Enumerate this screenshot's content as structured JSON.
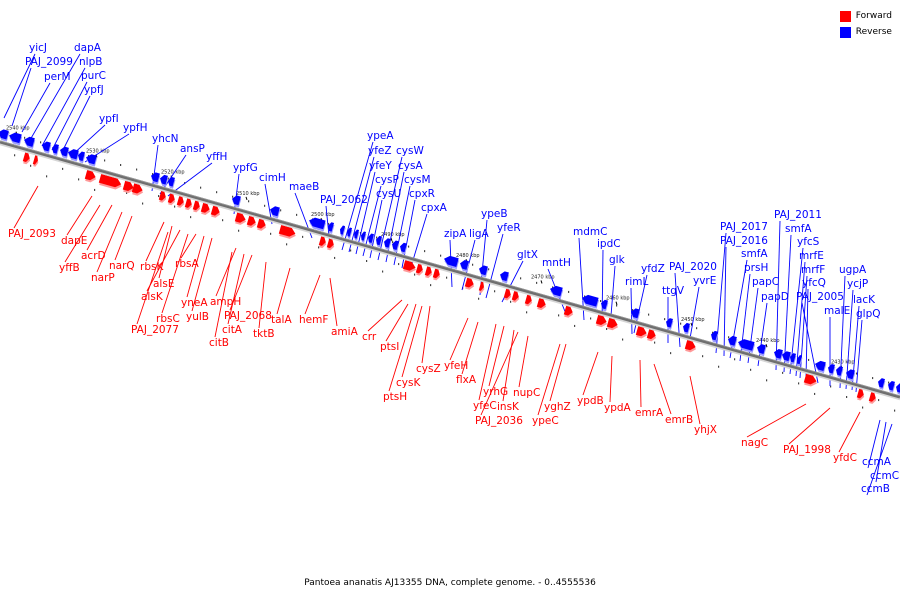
{
  "legend": {
    "forward": {
      "label": "Forward",
      "color": "#ff0000"
    },
    "reverse": {
      "label": "Reverse",
      "color": "#0000ff"
    }
  },
  "caption": "Pantoea ananatis AJ13355 DNA, complete genome. - 0..4555536",
  "kbp_ticks": [
    "2540 kbp",
    "2530 kbp",
    "2520 kbp",
    "2510 kbp",
    "2500 kbp",
    "2490 kbp",
    "2480 kbp",
    "2470 kbp",
    "2460 kbp",
    "2450 kbp",
    "2440 kbp",
    "2430 kbp"
  ],
  "reverse_genes": [
    "yicJ",
    "PAJ_2099",
    "dapA",
    "perM",
    "nlpB",
    "purC",
    "ypfJ",
    "ypfI",
    "ypfH",
    "yhcN",
    "ansP",
    "yffH",
    "ypfG",
    "cimH",
    "maeB",
    "PAJ_2062",
    "ypeA",
    "yfeZ",
    "yfeY",
    "cysP",
    "cysU",
    "cysW",
    "cysA",
    "cysM",
    "cpxR",
    "cpxA",
    "zipA",
    "ligA",
    "ypeB",
    "yfeR",
    "gltX",
    "mntH",
    "mdmC",
    "ipdC",
    "glk",
    "yfdZ",
    "rimL",
    "ttgV",
    "PAJ_2020",
    "yvrE",
    "PAJ_2017",
    "PAJ_2016",
    "smfA",
    "prsH",
    "papC",
    "papD",
    "PAJ_2011",
    "smfA",
    "yfcS",
    "mrfE",
    "mrfF",
    "yfcQ",
    "PAJ_2005",
    "malE",
    "ugpA",
    "ycjP",
    "lacK",
    "glpQ",
    "ccmA",
    "ccmC",
    "ccmB"
  ],
  "forward_genes": [
    "PAJ_2093",
    "dapE",
    "yffB",
    "acrD",
    "narP",
    "narQ",
    "rbsK",
    "alsE",
    "alsK",
    "rbsC",
    "rbsA",
    "yneA",
    "yulB",
    "PAJ_2077",
    "ampH",
    "PAJ_2068",
    "citA",
    "citB",
    "tktB",
    "talA",
    "hemF",
    "amiA",
    "crr",
    "ptsI",
    "cysZ",
    "cysK",
    "ptsH",
    "yfeH",
    "flxA",
    "yrhG",
    "yfeC",
    "insK",
    "PAJ_2036",
    "nupC",
    "yghZ",
    "ypeC",
    "ypdB",
    "ypdA",
    "emrA",
    "emrB",
    "yhjX",
    "nagC",
    "PAJ_1998",
    "yfdC"
  ]
}
